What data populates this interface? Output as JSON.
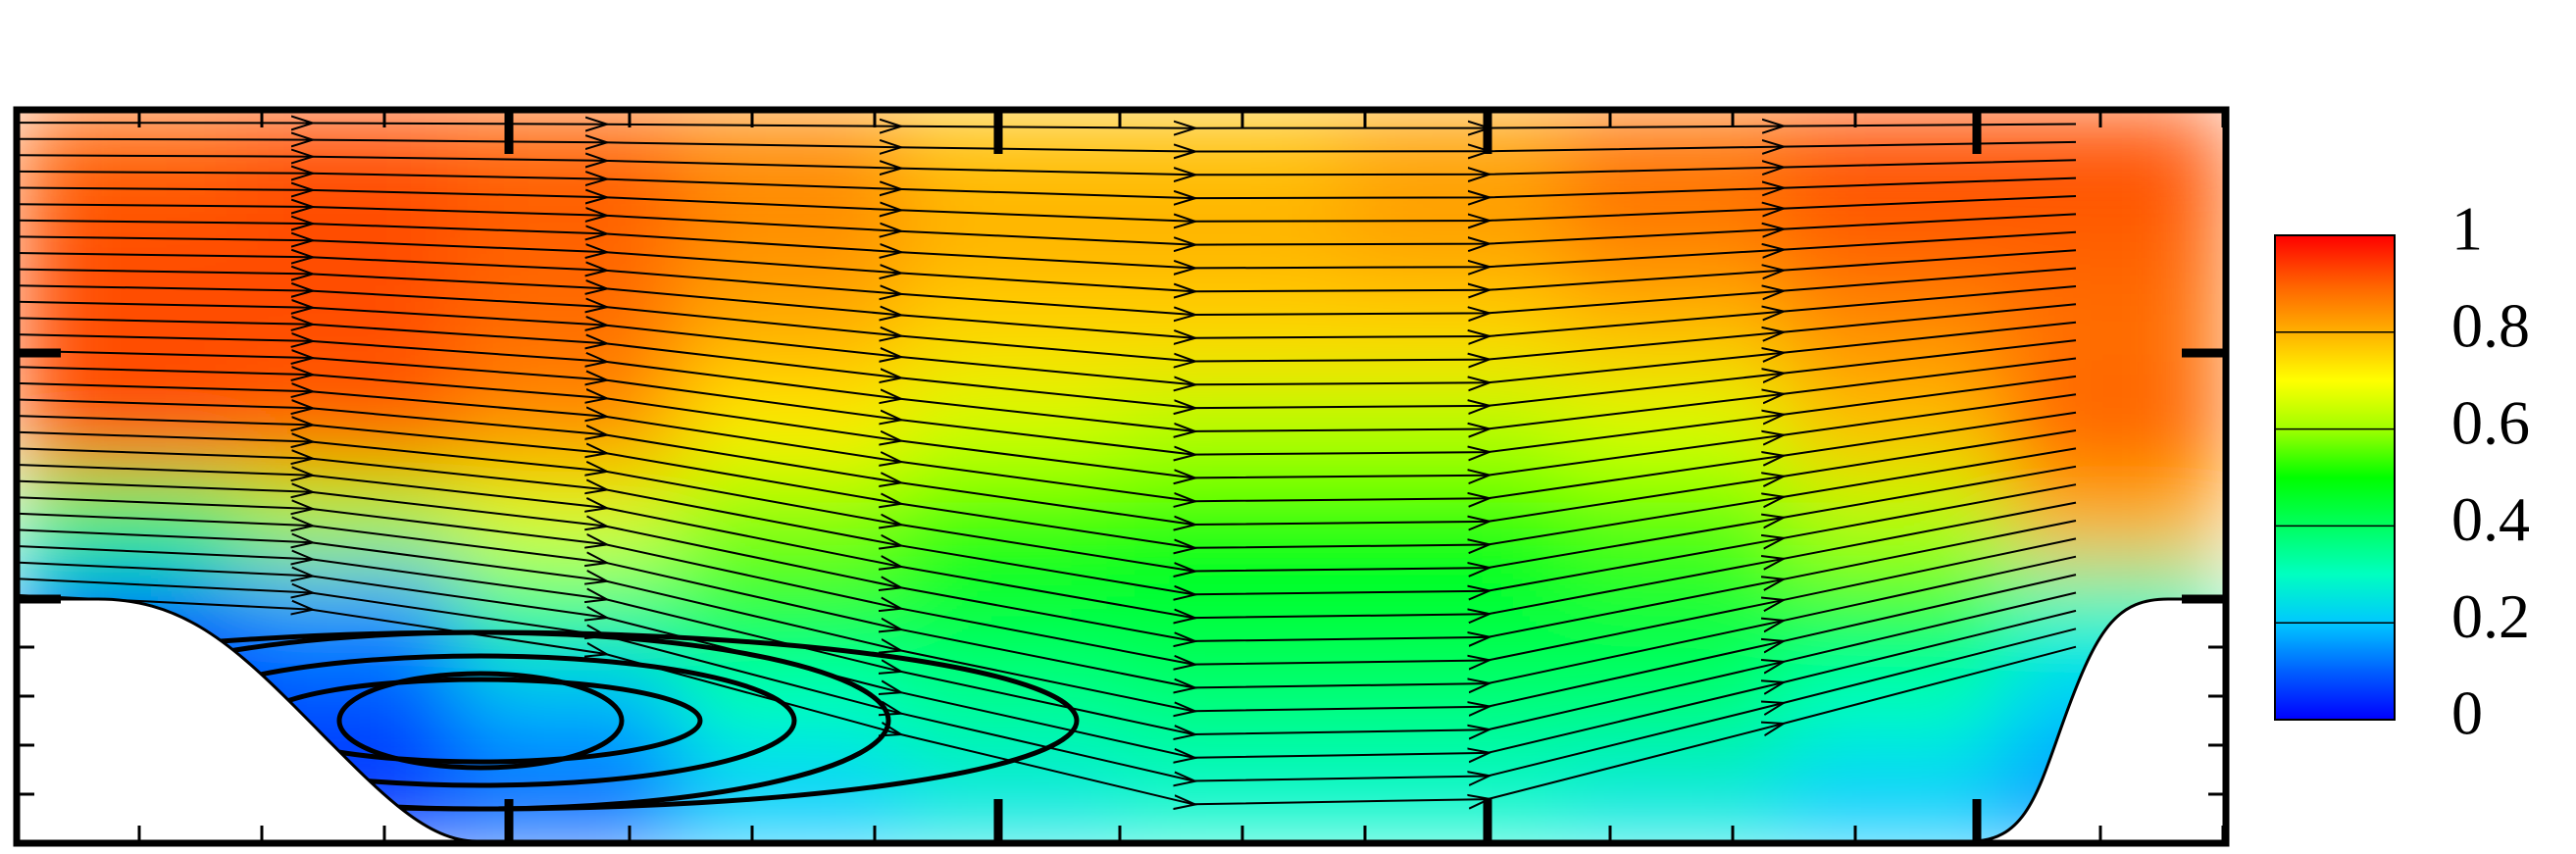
{
  "chart_data": {
    "type": "contour",
    "colormap": [
      "#0000ff",
      "#0060ff",
      "#00c8ff",
      "#00ffc0",
      "#00ff60",
      "#00ff00",
      "#a0ff00",
      "#ffff00",
      "#ffb000",
      "#ff6000",
      "#ff0000"
    ],
    "clim": [
      0,
      1
    ],
    "cticks": [
      0,
      0.2,
      0.4,
      0.6,
      0.8,
      1
    ],
    "z": [
      [
        0.9,
        0.92,
        0.9,
        0.85,
        0.78,
        0.78,
        0.82,
        0.88,
        0.92,
        0.92
      ],
      [
        0.92,
        0.92,
        0.9,
        0.84,
        0.8,
        0.8,
        0.82,
        0.86,
        0.9,
        0.9
      ],
      [
        0.92,
        0.92,
        0.88,
        0.8,
        0.75,
        0.75,
        0.75,
        0.78,
        0.84,
        0.88
      ],
      [
        0.92,
        0.9,
        0.84,
        0.72,
        0.65,
        0.62,
        0.62,
        0.66,
        0.78,
        0.9
      ],
      [
        0.4,
        0.6,
        0.66,
        0.58,
        0.52,
        0.5,
        0.5,
        0.55,
        0.62,
        0.8
      ],
      [
        0.1,
        0.15,
        0.35,
        0.45,
        0.45,
        0.45,
        0.45,
        0.45,
        0.45,
        0.3
      ],
      [
        0.05,
        0.08,
        0.18,
        0.3,
        0.35,
        0.38,
        0.38,
        0.38,
        0.3,
        0.2
      ],
      [
        0.05,
        0.05,
        0.1,
        0.2,
        0.25,
        0.28,
        0.28,
        0.25,
        0.2,
        0.15
      ]
    ]
  }
}
